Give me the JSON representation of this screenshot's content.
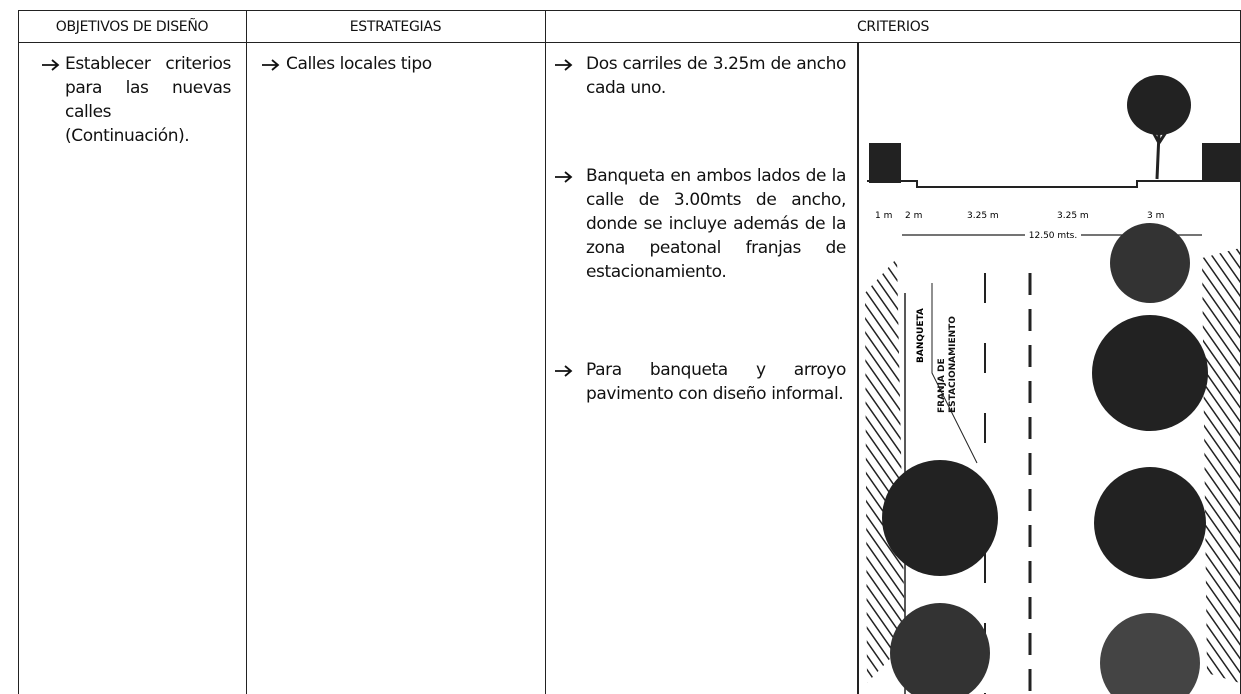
{
  "table": {
    "headers": [
      "OBJETIVOS DE DISEÑO",
      "ESTRATEGIAS",
      "CRITERIOS"
    ],
    "objetivos": [
      "Establecer criterios para las nuevas calles (Continuación)."
    ],
    "estrategias": [
      "Calles locales tipo"
    ],
    "criterios": [
      "Dos carriles de 3.25m de ancho cada uno.",
      "Banqueta en ambos lados de la calle de 3.00mts de ancho, donde se incluye además de la zona peatonal franjas de estacionamiento.",
      "Para banqueta y arroyo pavimento con diseño informal."
    ]
  },
  "figure": {
    "dimensions": [
      "1 m",
      "2 m",
      "3.25 m",
      "3.25 m",
      "3 m"
    ],
    "total": "12.50 mts.",
    "labels": [
      "BANQUETA",
      "FRANJA DE ESTACIONAMIENTO"
    ]
  }
}
